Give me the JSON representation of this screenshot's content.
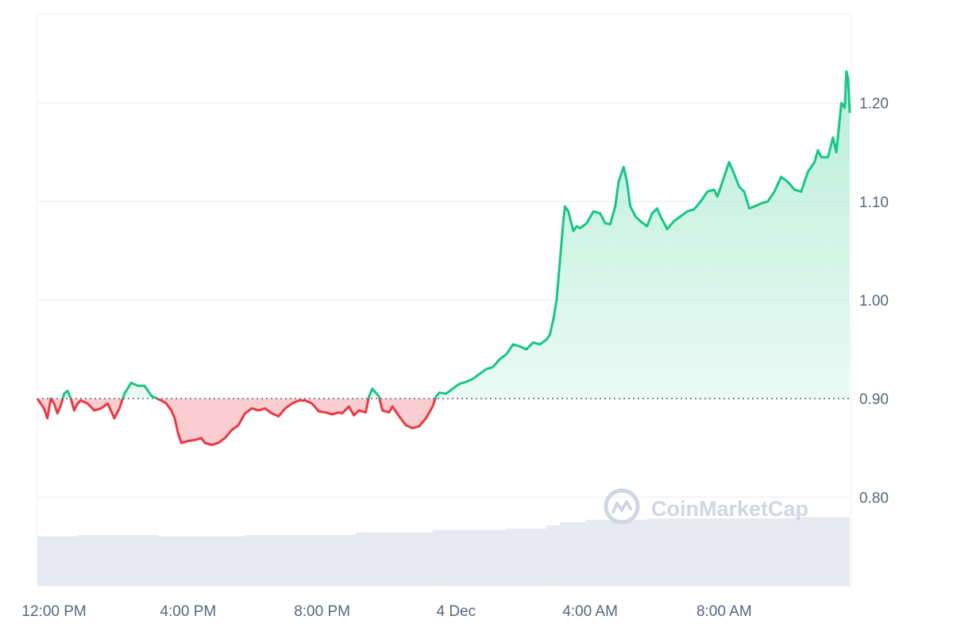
{
  "colors": {
    "up": "#16c784",
    "down": "#ea3943",
    "grid": "#eff2f5",
    "volume": "#e6e9ef",
    "baseline": "#58667e",
    "tick_text": "#58667e",
    "watermark": "#cfd6e4"
  },
  "watermark": {
    "text": "CoinMarketCap",
    "icon": "coinmarketcap-logo-icon"
  },
  "chart_data": {
    "type": "line",
    "title": "",
    "xlabel": "",
    "ylabel": "",
    "baseline": 0.9,
    "ylim": [
      0.71,
      1.29
    ],
    "y_ticks": [
      0.8,
      0.9,
      1.0,
      1.1,
      1.2
    ],
    "y_tick_labels": [
      "0.80",
      "0.90",
      "1.00",
      "1.10",
      "1.20"
    ],
    "x_tick_labels": [
      {
        "label": "12:00 PM",
        "hour": 0.5
      },
      {
        "label": "4:00 PM",
        "hour": 4.5
      },
      {
        "label": "8:00 PM",
        "hour": 8.5
      },
      {
        "label": "4 Dec",
        "hour": 12.5
      },
      {
        "label": "4:00 AM",
        "hour": 16.5
      },
      {
        "label": "8:00 AM",
        "hour": 20.5
      }
    ],
    "x_range_hours": [
      0,
      24.25
    ],
    "grid": true,
    "legend": "none",
    "series": [
      {
        "points": [
          [
            0.0,
            0.9
          ],
          [
            0.1,
            0.895
          ],
          [
            0.2,
            0.89
          ],
          [
            0.3,
            0.88
          ],
          [
            0.4,
            0.9
          ],
          [
            0.5,
            0.895
          ],
          [
            0.6,
            0.885
          ],
          [
            0.7,
            0.893
          ],
          [
            0.8,
            0.905
          ],
          [
            0.9,
            0.908
          ],
          [
            1.0,
            0.9
          ],
          [
            1.1,
            0.888
          ],
          [
            1.2,
            0.895
          ],
          [
            1.3,
            0.898
          ],
          [
            1.5,
            0.895
          ],
          [
            1.7,
            0.888
          ],
          [
            1.9,
            0.89
          ],
          [
            2.1,
            0.895
          ],
          [
            2.3,
            0.88
          ],
          [
            2.45,
            0.89
          ],
          [
            2.6,
            0.905
          ],
          [
            2.8,
            0.916
          ],
          [
            3.0,
            0.913
          ],
          [
            3.2,
            0.913
          ],
          [
            3.4,
            0.903
          ],
          [
            3.7,
            0.898
          ],
          [
            3.85,
            0.895
          ],
          [
            4.0,
            0.888
          ],
          [
            4.1,
            0.88
          ],
          [
            4.2,
            0.865
          ],
          [
            4.3,
            0.855
          ],
          [
            4.5,
            0.857
          ],
          [
            4.7,
            0.858
          ],
          [
            4.9,
            0.86
          ],
          [
            5.0,
            0.855
          ],
          [
            5.2,
            0.853
          ],
          [
            5.4,
            0.855
          ],
          [
            5.6,
            0.86
          ],
          [
            5.8,
            0.868
          ],
          [
            6.0,
            0.873
          ],
          [
            6.2,
            0.885
          ],
          [
            6.4,
            0.89
          ],
          [
            6.6,
            0.888
          ],
          [
            6.8,
            0.89
          ],
          [
            7.0,
            0.885
          ],
          [
            7.2,
            0.882
          ],
          [
            7.4,
            0.89
          ],
          [
            7.6,
            0.895
          ],
          [
            7.8,
            0.898
          ],
          [
            8.0,
            0.898
          ],
          [
            8.2,
            0.895
          ],
          [
            8.4,
            0.887
          ],
          [
            8.6,
            0.886
          ],
          [
            8.8,
            0.884
          ],
          [
            9.0,
            0.886
          ],
          [
            9.1,
            0.885
          ],
          [
            9.3,
            0.892
          ],
          [
            9.45,
            0.883
          ],
          [
            9.6,
            0.888
          ],
          [
            9.8,
            0.886
          ],
          [
            9.9,
            0.902
          ],
          [
            10.0,
            0.91
          ],
          [
            10.1,
            0.906
          ],
          [
            10.2,
            0.902
          ],
          [
            10.3,
            0.888
          ],
          [
            10.5,
            0.886
          ],
          [
            10.6,
            0.892
          ],
          [
            10.8,
            0.882
          ],
          [
            11.0,
            0.873
          ],
          [
            11.2,
            0.87
          ],
          [
            11.4,
            0.872
          ],
          [
            11.6,
            0.88
          ],
          [
            11.8,
            0.892
          ],
          [
            11.9,
            0.902
          ],
          [
            12.0,
            0.906
          ],
          [
            12.2,
            0.905
          ],
          [
            12.4,
            0.91
          ],
          [
            12.6,
            0.915
          ],
          [
            12.8,
            0.917
          ],
          [
            13.0,
            0.92
          ],
          [
            13.2,
            0.925
          ],
          [
            13.4,
            0.93
          ],
          [
            13.6,
            0.932
          ],
          [
            13.8,
            0.94
          ],
          [
            14.0,
            0.945
          ],
          [
            14.2,
            0.955
          ],
          [
            14.4,
            0.953
          ],
          [
            14.6,
            0.95
          ],
          [
            14.8,
            0.957
          ],
          [
            15.0,
            0.955
          ],
          [
            15.2,
            0.96
          ],
          [
            15.3,
            0.965
          ],
          [
            15.4,
            0.98
          ],
          [
            15.5,
            1.0
          ],
          [
            15.6,
            1.04
          ],
          [
            15.7,
            1.08
          ],
          [
            15.75,
            1.095
          ],
          [
            15.85,
            1.09
          ],
          [
            16.0,
            1.07
          ],
          [
            16.1,
            1.075
          ],
          [
            16.2,
            1.073
          ],
          [
            16.4,
            1.078
          ],
          [
            16.6,
            1.09
          ],
          [
            16.8,
            1.088
          ],
          [
            16.95,
            1.078
          ],
          [
            17.1,
            1.077
          ],
          [
            17.25,
            1.095
          ],
          [
            17.35,
            1.12
          ],
          [
            17.5,
            1.135
          ],
          [
            17.6,
            1.12
          ],
          [
            17.7,
            1.095
          ],
          [
            17.85,
            1.085
          ],
          [
            18.0,
            1.08
          ],
          [
            18.2,
            1.075
          ],
          [
            18.35,
            1.088
          ],
          [
            18.5,
            1.093
          ],
          [
            18.6,
            1.085
          ],
          [
            18.8,
            1.072
          ],
          [
            19.0,
            1.08
          ],
          [
            19.2,
            1.085
          ],
          [
            19.4,
            1.09
          ],
          [
            19.6,
            1.092
          ],
          [
            19.8,
            1.1
          ],
          [
            20.0,
            1.11
          ],
          [
            20.2,
            1.112
          ],
          [
            20.3,
            1.105
          ],
          [
            20.45,
            1.12
          ],
          [
            20.55,
            1.13
          ],
          [
            20.65,
            1.14
          ],
          [
            20.8,
            1.128
          ],
          [
            20.95,
            1.115
          ],
          [
            21.1,
            1.11
          ],
          [
            21.25,
            1.093
          ],
          [
            21.4,
            1.095
          ],
          [
            21.6,
            1.098
          ],
          [
            21.8,
            1.1
          ],
          [
            22.0,
            1.11
          ],
          [
            22.2,
            1.125
          ],
          [
            22.4,
            1.12
          ],
          [
            22.6,
            1.112
          ],
          [
            22.8,
            1.11
          ],
          [
            23.0,
            1.13
          ],
          [
            23.2,
            1.14
          ],
          [
            23.3,
            1.152
          ],
          [
            23.4,
            1.145
          ],
          [
            23.6,
            1.145
          ],
          [
            23.75,
            1.165
          ],
          [
            23.85,
            1.15
          ],
          [
            24.0,
            1.2
          ],
          [
            24.1,
            1.195
          ],
          [
            24.15,
            1.232
          ],
          [
            24.2,
            1.225
          ],
          [
            24.25,
            1.19
          ]
        ]
      }
    ],
    "volume": {
      "segments": [
        {
          "from": 0.0,
          "to": 1.2,
          "level": 0.78
        },
        {
          "from": 1.2,
          "to": 3.6,
          "level": 0.8
        },
        {
          "from": 3.6,
          "to": 6.2,
          "level": 0.78
        },
        {
          "from": 6.2,
          "to": 9.5,
          "level": 0.8
        },
        {
          "from": 9.5,
          "to": 11.8,
          "level": 0.84
        },
        {
          "from": 11.8,
          "to": 14.0,
          "level": 0.88
        },
        {
          "from": 14.0,
          "to": 15.2,
          "level": 0.9
        },
        {
          "from": 15.2,
          "to": 15.6,
          "level": 0.95
        },
        {
          "from": 15.6,
          "to": 16.4,
          "level": 1.0
        },
        {
          "from": 16.4,
          "to": 18.2,
          "level": 1.04
        },
        {
          "from": 18.2,
          "to": 22.6,
          "level": 1.06
        },
        {
          "from": 22.6,
          "to": 24.25,
          "level": 1.08
        }
      ]
    }
  }
}
